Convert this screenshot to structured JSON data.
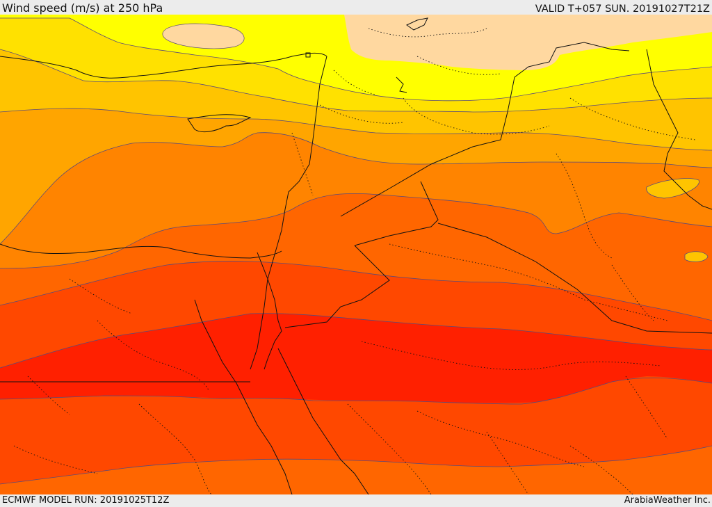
{
  "header": {
    "title": "Wind speed (m/s) at 250 hPa",
    "valid": "VALID T+057 SUN. 20191027T21Z"
  },
  "footer": {
    "model_run": "ECMWF MODEL RUN: 20191025T12Z",
    "credit": "ArabiaWeather Inc."
  },
  "map": {
    "colors": {
      "band_1": "#ffd8a0",
      "band_2": "#ffff00",
      "band_3": "#ffe100",
      "band_4": "#ffc400",
      "band_5": "#ffa500",
      "band_6": "#ff8400",
      "band_7": "#ff6600",
      "band_8": "#ff4800",
      "band_9": "#ff2000",
      "contour": "#5a4a7a",
      "border": "#111111"
    }
  }
}
